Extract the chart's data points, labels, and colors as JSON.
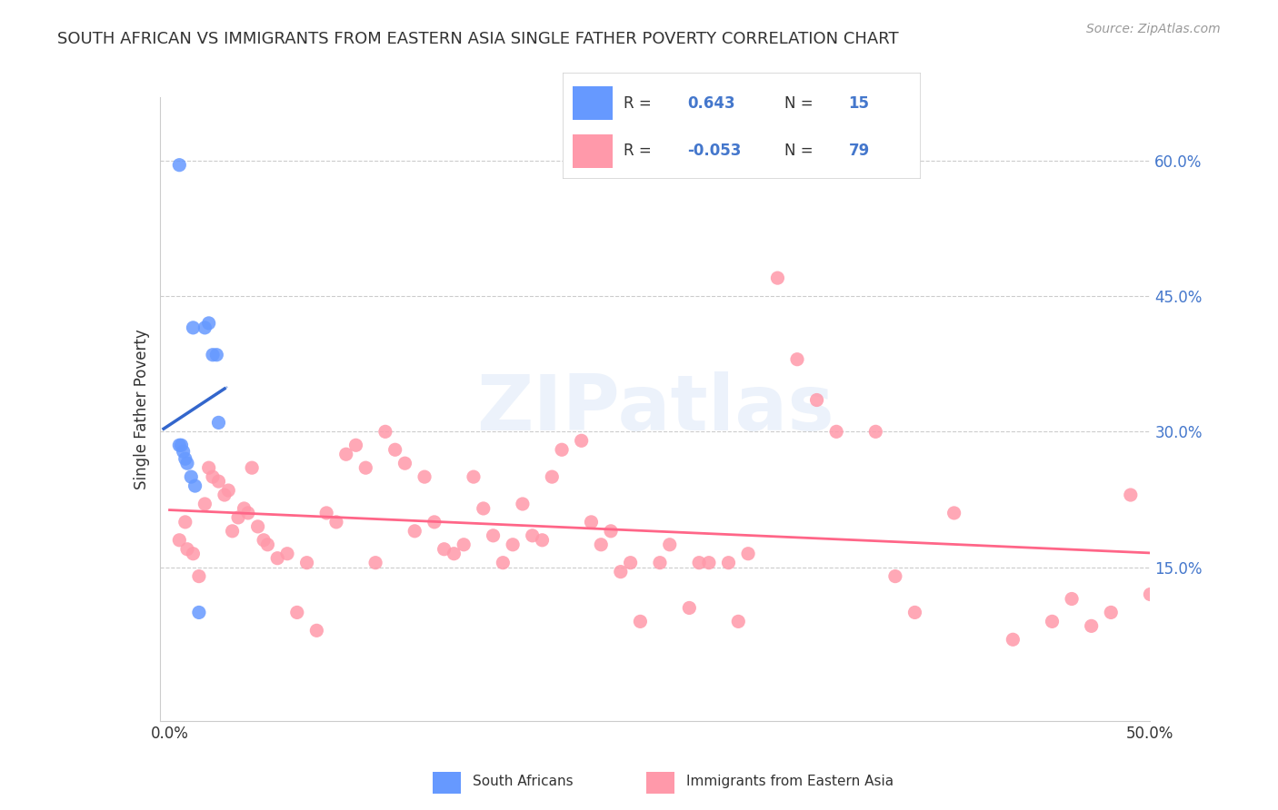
{
  "title": "SOUTH AFRICAN VS IMMIGRANTS FROM EASTERN ASIA SINGLE FATHER POVERTY CORRELATION CHART",
  "source": "Source: ZipAtlas.com",
  "xlabel": "",
  "ylabel": "Single Father Poverty",
  "xlim": [
    0,
    0.5
  ],
  "ylim": [
    0,
    0.65
  ],
  "xticks": [
    0.0,
    0.1,
    0.2,
    0.3,
    0.4,
    0.5
  ],
  "xtick_labels": [
    "0.0%",
    "",
    "",
    "",
    "",
    "50.0%"
  ],
  "ytick_labels_right": [
    "60.0%",
    "45.0%",
    "30.0%",
    "15.0%"
  ],
  "ytick_vals_right": [
    0.6,
    0.45,
    0.3,
    0.15
  ],
  "R_blue": 0.643,
  "N_blue": 15,
  "R_pink": -0.053,
  "N_pink": 79,
  "legend_label_blue": "South Africans",
  "legend_label_pink": "Immigrants from Eastern Asia",
  "blue_color": "#6699ff",
  "pink_color": "#ff99aa",
  "blue_line_color": "#3366cc",
  "pink_line_color": "#ff6688",
  "watermark": "ZIPatlas",
  "blue_scatter_x": [
    0.005,
    0.012,
    0.018,
    0.02,
    0.022,
    0.024,
    0.005,
    0.006,
    0.007,
    0.008,
    0.009,
    0.011,
    0.013,
    0.025,
    0.015
  ],
  "blue_scatter_y": [
    0.595,
    0.415,
    0.415,
    0.42,
    0.385,
    0.385,
    0.285,
    0.285,
    0.278,
    0.27,
    0.265,
    0.25,
    0.24,
    0.31,
    0.1
  ],
  "pink_scatter_x": [
    0.005,
    0.008,
    0.009,
    0.012,
    0.015,
    0.018,
    0.02,
    0.022,
    0.025,
    0.028,
    0.03,
    0.032,
    0.035,
    0.038,
    0.04,
    0.042,
    0.045,
    0.048,
    0.05,
    0.055,
    0.06,
    0.065,
    0.07,
    0.075,
    0.08,
    0.085,
    0.09,
    0.095,
    0.1,
    0.105,
    0.11,
    0.115,
    0.12,
    0.125,
    0.13,
    0.135,
    0.14,
    0.145,
    0.15,
    0.155,
    0.16,
    0.165,
    0.17,
    0.175,
    0.18,
    0.185,
    0.19,
    0.195,
    0.2,
    0.21,
    0.215,
    0.22,
    0.225,
    0.23,
    0.235,
    0.24,
    0.25,
    0.255,
    0.265,
    0.27,
    0.275,
    0.285,
    0.29,
    0.295,
    0.31,
    0.32,
    0.33,
    0.34,
    0.36,
    0.37,
    0.38,
    0.4,
    0.43,
    0.45,
    0.46,
    0.47,
    0.48,
    0.49,
    0.5
  ],
  "pink_scatter_y": [
    0.18,
    0.2,
    0.17,
    0.165,
    0.14,
    0.22,
    0.26,
    0.25,
    0.245,
    0.23,
    0.235,
    0.19,
    0.205,
    0.215,
    0.21,
    0.26,
    0.195,
    0.18,
    0.175,
    0.16,
    0.165,
    0.1,
    0.155,
    0.08,
    0.21,
    0.2,
    0.275,
    0.285,
    0.26,
    0.155,
    0.3,
    0.28,
    0.265,
    0.19,
    0.25,
    0.2,
    0.17,
    0.165,
    0.175,
    0.25,
    0.215,
    0.185,
    0.155,
    0.175,
    0.22,
    0.185,
    0.18,
    0.25,
    0.28,
    0.29,
    0.2,
    0.175,
    0.19,
    0.145,
    0.155,
    0.09,
    0.155,
    0.175,
    0.105,
    0.155,
    0.155,
    0.155,
    0.09,
    0.165,
    0.47,
    0.38,
    0.335,
    0.3,
    0.3,
    0.14,
    0.1,
    0.21,
    0.07,
    0.09,
    0.115,
    0.085,
    0.1,
    0.23,
    0.12
  ]
}
